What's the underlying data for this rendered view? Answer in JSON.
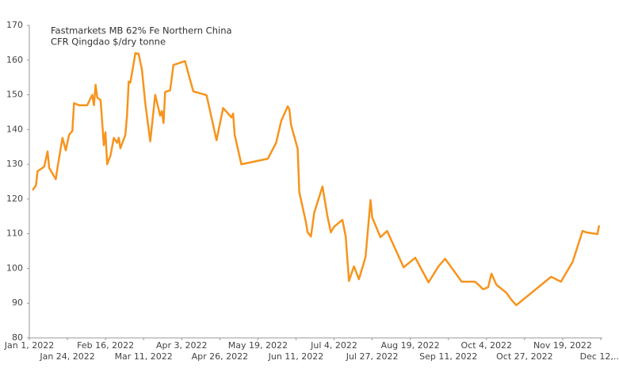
{
  "chart_data": {
    "type": "line",
    "title": [
      "Fastmarkets MB 62% Fe Northern China",
      "CFR Qingdao $/dry tonne"
    ],
    "x": [
      "2022-01-03",
      "2022-01-05",
      "2022-01-06",
      "2022-01-10",
      "2022-01-12",
      "2022-01-13",
      "2022-01-17",
      "2022-01-18",
      "2022-01-21",
      "2022-01-23",
      "2022-01-25",
      "2022-01-27",
      "2022-01-28",
      "2022-01-31",
      "2022-02-05",
      "2022-02-08",
      "2022-02-09",
      "2022-02-10",
      "2022-02-11",
      "2022-02-13",
      "2022-02-15",
      "2022-02-16",
      "2022-02-17",
      "2022-02-19",
      "2022-02-21",
      "2022-02-23",
      "2022-02-24",
      "2022-02-25",
      "2022-02-28",
      "2022-03-01",
      "2022-03-02",
      "2022-03-03",
      "2022-03-06",
      "2022-03-08",
      "2022-03-10",
      "2022-03-12",
      "2022-03-15",
      "2022-03-18",
      "2022-03-21",
      "2022-03-22",
      "2022-03-23",
      "2022-03-24",
      "2022-03-27",
      "2022-03-29",
      "2022-04-05",
      "2022-04-10",
      "2022-04-18",
      "2022-04-24",
      "2022-04-28",
      "2022-05-03",
      "2022-05-04",
      "2022-05-05",
      "2022-05-09",
      "2022-05-25",
      "2022-05-30",
      "2022-06-02",
      "2022-06-06",
      "2022-06-07",
      "2022-06-08",
      "2022-06-12",
      "2022-06-13",
      "2022-06-17",
      "2022-06-18",
      "2022-06-20",
      "2022-06-22",
      "2022-06-27",
      "2022-06-30",
      "2022-07-02",
      "2022-07-04",
      "2022-07-09",
      "2022-07-11",
      "2022-07-13",
      "2022-07-16",
      "2022-07-19",
      "2022-07-23",
      "2022-07-26",
      "2022-07-27",
      "2022-08-01",
      "2022-08-05",
      "2022-08-15",
      "2022-08-22",
      "2022-08-30",
      "2022-09-05",
      "2022-09-09",
      "2022-09-19",
      "2022-09-27",
      "2022-09-28",
      "2022-10-02",
      "2022-10-05",
      "2022-10-07",
      "2022-10-10",
      "2022-10-16",
      "2022-10-19",
      "2022-10-22",
      "2022-11-12",
      "2022-11-18",
      "2022-11-25",
      "2022-12-01",
      "2022-12-03",
      "2022-12-10",
      "2022-12-11"
    ],
    "series": [
      {
        "color": "#f7941d",
        "values": [
          122.5,
          124,
          128,
          129.3,
          133.7,
          128.9,
          125.7,
          129,
          137.6,
          134,
          138.5,
          139.6,
          147.6,
          147,
          147,
          150,
          147,
          152.9,
          149.2,
          148.5,
          135.5,
          139.2,
          130,
          132.5,
          137.6,
          136.2,
          137.6,
          134.6,
          138.5,
          144.2,
          153.8,
          153.5,
          162,
          161.8,
          157.2,
          147.6,
          136.6,
          150,
          144,
          145.3,
          141.9,
          150.8,
          151.3,
          158.6,
          159.7,
          151,
          149.9,
          136.9,
          146.2,
          143.5,
          144.6,
          138.5,
          130,
          131.6,
          136.2,
          142.4,
          146.7,
          145.8,
          141.4,
          134.4,
          122,
          113.3,
          110.4,
          109.2,
          116.1,
          123.6,
          115,
          110.4,
          112,
          114,
          109.2,
          96.4,
          100.6,
          96.9,
          103.3,
          119.7,
          114.7,
          109,
          110.8,
          100.3,
          103.1,
          96,
          100.6,
          102.8,
          96.2,
          96.2,
          95.8,
          94,
          94.6,
          98.5,
          95.3,
          93,
          91,
          89.4,
          97.6,
          96.2,
          101.9,
          110.8,
          110.4,
          109.9,
          112.4
        ]
      }
    ],
    "xlim": [
      "2022-01-01",
      "2022-12-12"
    ],
    "xticks": [
      {
        "value": "2022-01-01",
        "label": "Jan 1, 2022"
      },
      {
        "value": "2022-01-24",
        "label": "Jan 24, 2022"
      },
      {
        "value": "2022-02-16",
        "label": "Feb 16, 2022"
      },
      {
        "value": "2022-03-11",
        "label": "Mar 11, 2022"
      },
      {
        "value": "2022-04-03",
        "label": "Apr 3, 2022"
      },
      {
        "value": "2022-04-26",
        "label": "Apr 26, 2022"
      },
      {
        "value": "2022-05-19",
        "label": "May 19, 2022"
      },
      {
        "value": "2022-06-11",
        "label": "Jun 11, 2022"
      },
      {
        "value": "2022-07-04",
        "label": "Jul 4, 2022"
      },
      {
        "value": "2022-07-27",
        "label": "Jul 27, 2022"
      },
      {
        "value": "2022-08-19",
        "label": "Aug 19, 2022"
      },
      {
        "value": "2022-09-11",
        "label": "Sep 11, 2022"
      },
      {
        "value": "2022-10-04",
        "label": "Oct 4, 2022"
      },
      {
        "value": "2022-10-27",
        "label": "Oct 27, 2022"
      },
      {
        "value": "2022-11-19",
        "label": "Nov 19, 2022"
      },
      {
        "value": "2022-12-12",
        "label": "Dec 12,..."
      }
    ],
    "ylim": [
      80,
      170
    ],
    "yticks": [
      80,
      90,
      100,
      110,
      120,
      130,
      140,
      150,
      160,
      170
    ]
  }
}
